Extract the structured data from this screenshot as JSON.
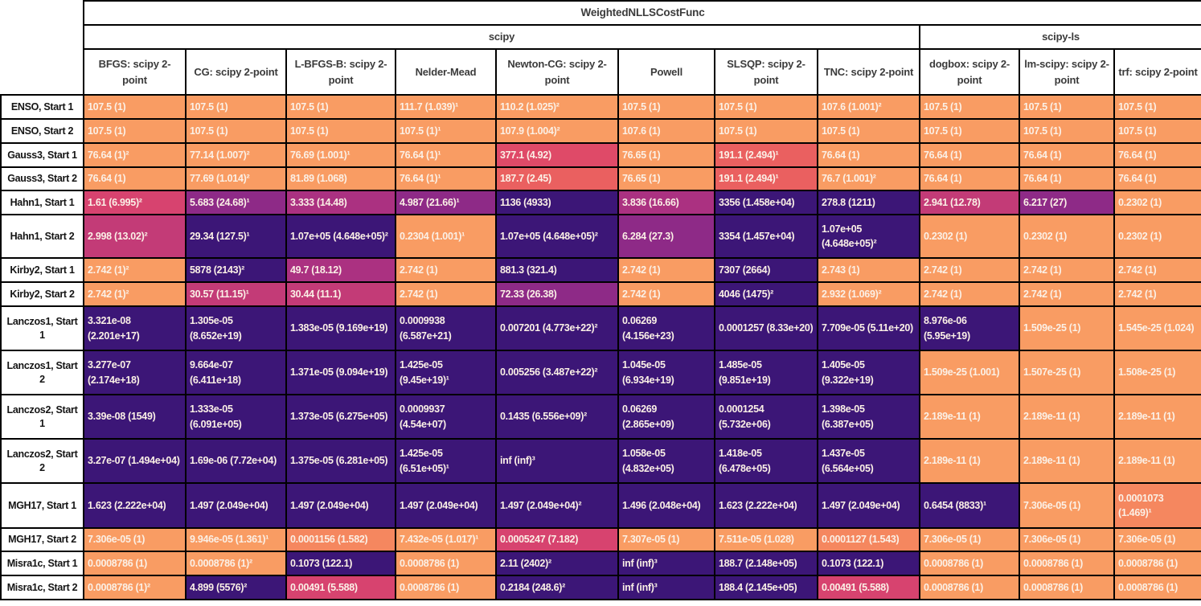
{
  "chart_data": {
    "type": "heatmap",
    "title": "WeightedNLLSCostFunc",
    "groups": [
      {
        "label": "scipy",
        "span": 8
      },
      {
        "label": "scipy-ls",
        "span": 3
      }
    ],
    "columns": [
      "BFGS: scipy 2-point",
      "CG: scipy 2-point",
      "L-BFGS-B: scipy 2-point",
      "Nelder-Mead",
      "Newton-CG: scipy 2-point",
      "Powell",
      "SLSQP: scipy 2-point",
      "TNC: scipy 2-point",
      "dogbox: scipy 2-point",
      "lm-scipy: scipy 2-point",
      "trf: scipy 2-point"
    ],
    "palette": {
      "o": "#F99C63",
      "o2": "#F5875F",
      "r": "#EA6060",
      "c": "#DF4A68",
      "p": "#D7436F",
      "m1": "#C33B77",
      "m2": "#AB3181",
      "pu": "#8E2A87",
      "dk": "#3C1677"
    },
    "cell_text_color": "#FBF0E6",
    "rows": [
      {
        "label": "ENSO, Start 1",
        "cells": [
          {
            "t": "107.5 (1)",
            "c": "o"
          },
          {
            "t": "107.5 (1)",
            "c": "o"
          },
          {
            "t": "107.5 (1)",
            "c": "o"
          },
          {
            "t": "111.7 (1.039)¹",
            "c": "o"
          },
          {
            "t": "110.2 (1.025)²",
            "c": "o"
          },
          {
            "t": "107.5 (1)",
            "c": "o"
          },
          {
            "t": "107.5 (1)",
            "c": "o"
          },
          {
            "t": "107.6 (1.001)²",
            "c": "o"
          },
          {
            "t": "107.5 (1)",
            "c": "o"
          },
          {
            "t": "107.5 (1)",
            "c": "o"
          },
          {
            "t": "107.5 (1)",
            "c": "o"
          }
        ]
      },
      {
        "label": "ENSO, Start 2",
        "cells": [
          {
            "t": "107.5 (1)",
            "c": "o"
          },
          {
            "t": "107.5 (1)",
            "c": "o"
          },
          {
            "t": "107.5 (1)",
            "c": "o"
          },
          {
            "t": "107.5 (1)¹",
            "c": "o"
          },
          {
            "t": "107.9 (1.004)²",
            "c": "o"
          },
          {
            "t": "107.6 (1)",
            "c": "o"
          },
          {
            "t": "107.5 (1)",
            "c": "o"
          },
          {
            "t": "107.5 (1)",
            "c": "o"
          },
          {
            "t": "107.5 (1)",
            "c": "o"
          },
          {
            "t": "107.5 (1)",
            "c": "o"
          },
          {
            "t": "107.5 (1)",
            "c": "o"
          }
        ]
      },
      {
        "label": "Gauss3, Start 1",
        "cells": [
          {
            "t": "76.64 (1)²",
            "c": "o"
          },
          {
            "t": "77.14 (1.007)²",
            "c": "o"
          },
          {
            "t": "76.69 (1.001)¹",
            "c": "o"
          },
          {
            "t": "76.64 (1)¹",
            "c": "o"
          },
          {
            "t": "377.1 (4.92)",
            "c": "c"
          },
          {
            "t": "76.65 (1)",
            "c": "o"
          },
          {
            "t": "191.1 (2.494)¹",
            "c": "r"
          },
          {
            "t": "76.64 (1)",
            "c": "o"
          },
          {
            "t": "76.64 (1)",
            "c": "o"
          },
          {
            "t": "76.64 (1)",
            "c": "o"
          },
          {
            "t": "76.64 (1)",
            "c": "o"
          }
        ]
      },
      {
        "label": "Gauss3, Start 2",
        "cells": [
          {
            "t": "76.64 (1)",
            "c": "o"
          },
          {
            "t": "77.69 (1.014)²",
            "c": "o"
          },
          {
            "t": "81.89 (1.068)",
            "c": "o"
          },
          {
            "t": "76.64 (1)¹",
            "c": "o"
          },
          {
            "t": "187.7 (2.45)",
            "c": "r"
          },
          {
            "t": "76.65 (1)",
            "c": "o"
          },
          {
            "t": "191.1 (2.494)¹",
            "c": "r"
          },
          {
            "t": "76.7 (1.001)²",
            "c": "o"
          },
          {
            "t": "76.64 (1)",
            "c": "o"
          },
          {
            "t": "76.64 (1)",
            "c": "o"
          },
          {
            "t": "76.64 (1)",
            "c": "o"
          }
        ]
      },
      {
        "label": "Hahn1, Start 1",
        "cells": [
          {
            "t": "1.61 (6.995)²",
            "c": "p"
          },
          {
            "t": "5.683 (24.68)¹",
            "c": "pu"
          },
          {
            "t": "3.333 (14.48)",
            "c": "m2"
          },
          {
            "t": "4.987 (21.66)¹",
            "c": "pu"
          },
          {
            "t": "1136 (4933)",
            "c": "dk"
          },
          {
            "t": "3.836 (16.66)",
            "c": "m2"
          },
          {
            "t": "3356 (1.458e+04)",
            "c": "dk"
          },
          {
            "t": "278.8 (1211)",
            "c": "dk"
          },
          {
            "t": "2.941 (12.78)",
            "c": "m1"
          },
          {
            "t": "6.217 (27)",
            "c": "pu"
          },
          {
            "t": "0.2302 (1)",
            "c": "o"
          }
        ]
      },
      {
        "label": "Hahn1, Start 2",
        "cells": [
          {
            "t": "2.998 (13.02)²",
            "c": "m1"
          },
          {
            "t": "29.34 (127.5)¹",
            "c": "dk"
          },
          {
            "t": "1.07e+05 (4.648e+05)²",
            "c": "dk"
          },
          {
            "t": "0.2304 (1.001)¹",
            "c": "o"
          },
          {
            "t": "1.07e+05 (4.648e+05)²",
            "c": "dk"
          },
          {
            "t": "6.284 (27.3)",
            "c": "pu"
          },
          {
            "t": "3354 (1.457e+04)",
            "c": "dk"
          },
          {
            "t": "1.07e+05 (4.648e+05)²",
            "c": "dk"
          },
          {
            "t": "0.2302 (1)",
            "c": "o"
          },
          {
            "t": "0.2302 (1)",
            "c": "o"
          },
          {
            "t": "0.2302 (1)",
            "c": "o"
          }
        ]
      },
      {
        "label": "Kirby2, Start 1",
        "cells": [
          {
            "t": "2.742 (1)²",
            "c": "o"
          },
          {
            "t": "5878 (2143)²",
            "c": "dk"
          },
          {
            "t": "49.7 (18.12)",
            "c": "m2"
          },
          {
            "t": "2.742 (1)",
            "c": "o"
          },
          {
            "t": "881.3 (321.4)",
            "c": "dk"
          },
          {
            "t": "2.742 (1)",
            "c": "o"
          },
          {
            "t": "7307 (2664)",
            "c": "dk"
          },
          {
            "t": "2.743 (1)",
            "c": "o"
          },
          {
            "t": "2.742 (1)",
            "c": "o"
          },
          {
            "t": "2.742 (1)",
            "c": "o"
          },
          {
            "t": "2.742 (1)",
            "c": "o"
          }
        ]
      },
      {
        "label": "Kirby2, Start 2",
        "cells": [
          {
            "t": "2.742 (1)²",
            "c": "o"
          },
          {
            "t": "30.57 (11.15)¹",
            "c": "m1"
          },
          {
            "t": "30.44 (11.1)",
            "c": "m1"
          },
          {
            "t": "2.742 (1)",
            "c": "o"
          },
          {
            "t": "72.33 (26.38)",
            "c": "pu"
          },
          {
            "t": "2.742 (1)",
            "c": "o"
          },
          {
            "t": "4046 (1475)²",
            "c": "dk"
          },
          {
            "t": "2.932 (1.069)²",
            "c": "o"
          },
          {
            "t": "2.742 (1)",
            "c": "o"
          },
          {
            "t": "2.742 (1)",
            "c": "o"
          },
          {
            "t": "2.742 (1)",
            "c": "o"
          }
        ]
      },
      {
        "label": "Lanczos1, Start 1",
        "cells": [
          {
            "t": "3.321e-08 (2.201e+17)",
            "c": "dk"
          },
          {
            "t": "1.305e-05 (8.652e+19)",
            "c": "dk"
          },
          {
            "t": "1.383e-05 (9.169e+19)",
            "c": "dk"
          },
          {
            "t": "0.0009938 (6.587e+21)",
            "c": "dk"
          },
          {
            "t": "0.007201 (4.773e+22)²",
            "c": "dk"
          },
          {
            "t": "0.06269 (4.156e+23)",
            "c": "dk"
          },
          {
            "t": "0.0001257 (8.33e+20)",
            "c": "dk"
          },
          {
            "t": "7.709e-05 (5.11e+20)",
            "c": "dk"
          },
          {
            "t": "8.976e-06 (5.95e+19)",
            "c": "dk"
          },
          {
            "t": "1.509e-25 (1)",
            "c": "o"
          },
          {
            "t": "1.545e-25 (1.024)",
            "c": "o"
          }
        ]
      },
      {
        "label": "Lanczos1, Start 2",
        "cells": [
          {
            "t": "3.277e-07 (2.174e+18)",
            "c": "dk"
          },
          {
            "t": "9.664e-07 (6.411e+18)",
            "c": "dk"
          },
          {
            "t": "1.371e-05 (9.094e+19)",
            "c": "dk"
          },
          {
            "t": "1.425e-05 (9.45e+19)¹",
            "c": "dk"
          },
          {
            "t": "0.005256 (3.487e+22)²",
            "c": "dk"
          },
          {
            "t": "1.045e-05 (6.934e+19)",
            "c": "dk"
          },
          {
            "t": "1.485e-05 (9.851e+19)",
            "c": "dk"
          },
          {
            "t": "1.405e-05 (9.322e+19)",
            "c": "dk"
          },
          {
            "t": "1.509e-25 (1.001)",
            "c": "o"
          },
          {
            "t": "1.507e-25 (1)",
            "c": "o"
          },
          {
            "t": "1.508e-25 (1)",
            "c": "o"
          }
        ]
      },
      {
        "label": "Lanczos2, Start 1",
        "cells": [
          {
            "t": "3.39e-08 (1549)",
            "c": "dk"
          },
          {
            "t": "1.333e-05 (6.091e+05)",
            "c": "dk"
          },
          {
            "t": "1.373e-05 (6.275e+05)",
            "c": "dk"
          },
          {
            "t": "0.0009937 (4.54e+07)",
            "c": "dk"
          },
          {
            "t": "0.1435 (6.556e+09)²",
            "c": "dk"
          },
          {
            "t": "0.06269 (2.865e+09)",
            "c": "dk"
          },
          {
            "t": "0.0001254 (5.732e+06)",
            "c": "dk"
          },
          {
            "t": "1.398e-05 (6.387e+05)",
            "c": "dk"
          },
          {
            "t": "2.189e-11 (1)",
            "c": "o"
          },
          {
            "t": "2.189e-11 (1)",
            "c": "o"
          },
          {
            "t": "2.189e-11 (1)",
            "c": "o"
          }
        ]
      },
      {
        "label": "Lanczos2, Start 2",
        "cells": [
          {
            "t": "3.27e-07 (1.494e+04)",
            "c": "dk"
          },
          {
            "t": "1.69e-06 (7.72e+04)",
            "c": "dk"
          },
          {
            "t": "1.375e-05 (6.281e+05)",
            "c": "dk"
          },
          {
            "t": "1.425e-05 (6.51e+05)¹",
            "c": "dk"
          },
          {
            "t": "inf (inf)³",
            "c": "dk"
          },
          {
            "t": "1.058e-05 (4.832e+05)",
            "c": "dk"
          },
          {
            "t": "1.418e-05 (6.478e+05)",
            "c": "dk"
          },
          {
            "t": "1.437e-05 (6.564e+05)",
            "c": "dk"
          },
          {
            "t": "2.189e-11 (1)",
            "c": "o"
          },
          {
            "t": "2.189e-11 (1)",
            "c": "o"
          },
          {
            "t": "2.189e-11 (1)",
            "c": "o"
          }
        ]
      },
      {
        "label": "MGH17, Start 1",
        "cells": [
          {
            "t": "1.623 (2.222e+04)",
            "c": "dk"
          },
          {
            "t": "1.497 (2.049e+04)",
            "c": "dk"
          },
          {
            "t": "1.497 (2.049e+04)",
            "c": "dk"
          },
          {
            "t": "1.497 (2.049e+04)",
            "c": "dk"
          },
          {
            "t": "1.497 (2.049e+04)²",
            "c": "dk"
          },
          {
            "t": "1.496 (2.048e+04)",
            "c": "dk"
          },
          {
            "t": "1.623 (2.222e+04)",
            "c": "dk"
          },
          {
            "t": "1.497 (2.049e+04)",
            "c": "dk"
          },
          {
            "t": "0.6454 (8833)¹",
            "c": "dk"
          },
          {
            "t": "7.306e-05 (1)",
            "c": "o"
          },
          {
            "t": "0.0001073 (1.469)¹",
            "c": "o2"
          }
        ]
      },
      {
        "label": "MGH17, Start 2",
        "cells": [
          {
            "t": "7.306e-05 (1)",
            "c": "o"
          },
          {
            "t": "9.946e-05 (1.361)¹",
            "c": "o"
          },
          {
            "t": "0.0001156 (1.582)",
            "c": "o2"
          },
          {
            "t": "7.432e-05 (1.017)¹",
            "c": "o"
          },
          {
            "t": "0.0005247 (7.182)",
            "c": "p"
          },
          {
            "t": "7.307e-05 (1)",
            "c": "o"
          },
          {
            "t": "7.511e-05 (1.028)",
            "c": "o"
          },
          {
            "t": "0.0001127 (1.543)",
            "c": "o2"
          },
          {
            "t": "7.306e-05 (1)",
            "c": "o"
          },
          {
            "t": "7.306e-05 (1)",
            "c": "o"
          },
          {
            "t": "7.306e-05 (1)",
            "c": "o"
          }
        ]
      },
      {
        "label": "Misra1c, Start 1",
        "cells": [
          {
            "t": "0.0008786 (1)",
            "c": "o"
          },
          {
            "t": "0.0008786 (1)²",
            "c": "o"
          },
          {
            "t": "0.1073 (122.1)",
            "c": "dk"
          },
          {
            "t": "0.0008786 (1)",
            "c": "o"
          },
          {
            "t": "2.11 (2402)²",
            "c": "dk"
          },
          {
            "t": "inf (inf)³",
            "c": "dk"
          },
          {
            "t": "188.7 (2.148e+05)",
            "c": "dk"
          },
          {
            "t": "0.1073 (122.1)",
            "c": "dk"
          },
          {
            "t": "0.0008786 (1)",
            "c": "o"
          },
          {
            "t": "0.0008786 (1)",
            "c": "o"
          },
          {
            "t": "0.0008786 (1)",
            "c": "o"
          }
        ]
      },
      {
        "label": "Misra1c, Start 2",
        "cells": [
          {
            "t": "0.0008786 (1)²",
            "c": "o"
          },
          {
            "t": "4.899 (5576)²",
            "c": "dk"
          },
          {
            "t": "0.00491 (5.588)",
            "c": "p"
          },
          {
            "t": "0.0008786 (1)",
            "c": "o"
          },
          {
            "t": "0.2184 (248.6)²",
            "c": "dk"
          },
          {
            "t": "inf (inf)³",
            "c": "dk"
          },
          {
            "t": "188.4 (2.145e+05)",
            "c": "dk"
          },
          {
            "t": "0.00491 (5.588)",
            "c": "p"
          },
          {
            "t": "0.0008786 (1)",
            "c": "o"
          },
          {
            "t": "0.0008786 (1)",
            "c": "o"
          },
          {
            "t": "0.0008786 (1)",
            "c": "o"
          }
        ]
      }
    ]
  }
}
